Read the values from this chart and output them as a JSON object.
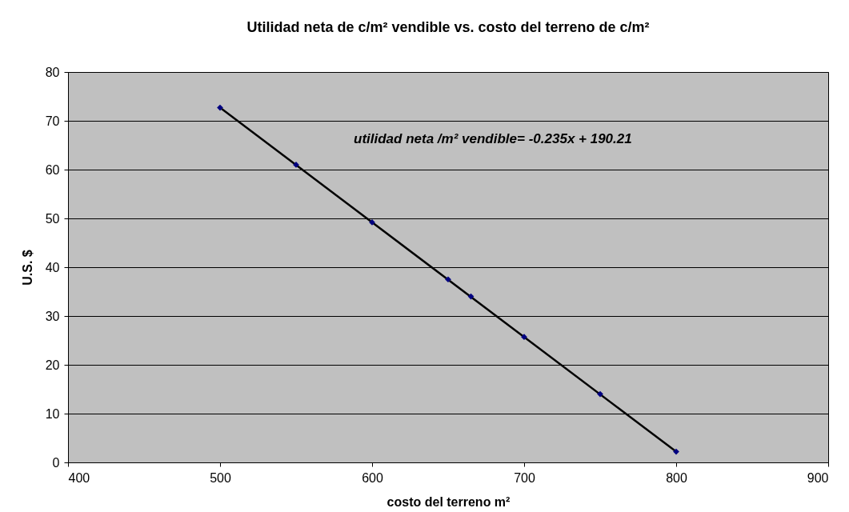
{
  "chart_data": {
    "type": "scatter",
    "title": "Utilidad neta de c/m²  vendible vs. costo del terreno de c/m²",
    "xlabel": "costo del terreno m²",
    "ylabel": "U.S. $",
    "series": [
      {
        "color": "#000080",
        "marker": "diamond",
        "x": [
          500,
          550,
          600,
          650,
          665,
          700,
          750,
          800
        ],
        "values": [
          72.7,
          61.0,
          49.2,
          37.5,
          34.0,
          25.7,
          14.0,
          2.2
        ]
      },
      {
        "type": "line",
        "color": "#000000",
        "marker": "none",
        "line_style": "solid",
        "x": [
          500,
          800
        ],
        "values": [
          72.7,
          2.2
        ]
      }
    ],
    "annotations": [
      "utilidad neta /m²  vendible= -0.235x + 190.21"
    ],
    "xlim": [
      400,
      900
    ],
    "xticks": [
      400,
      500,
      600,
      700,
      800,
      900
    ],
    "ylim": [
      0,
      80
    ],
    "yticks": [
      0,
      10,
      20,
      30,
      40,
      50,
      60,
      70,
      80
    ],
    "grid": "y"
  }
}
